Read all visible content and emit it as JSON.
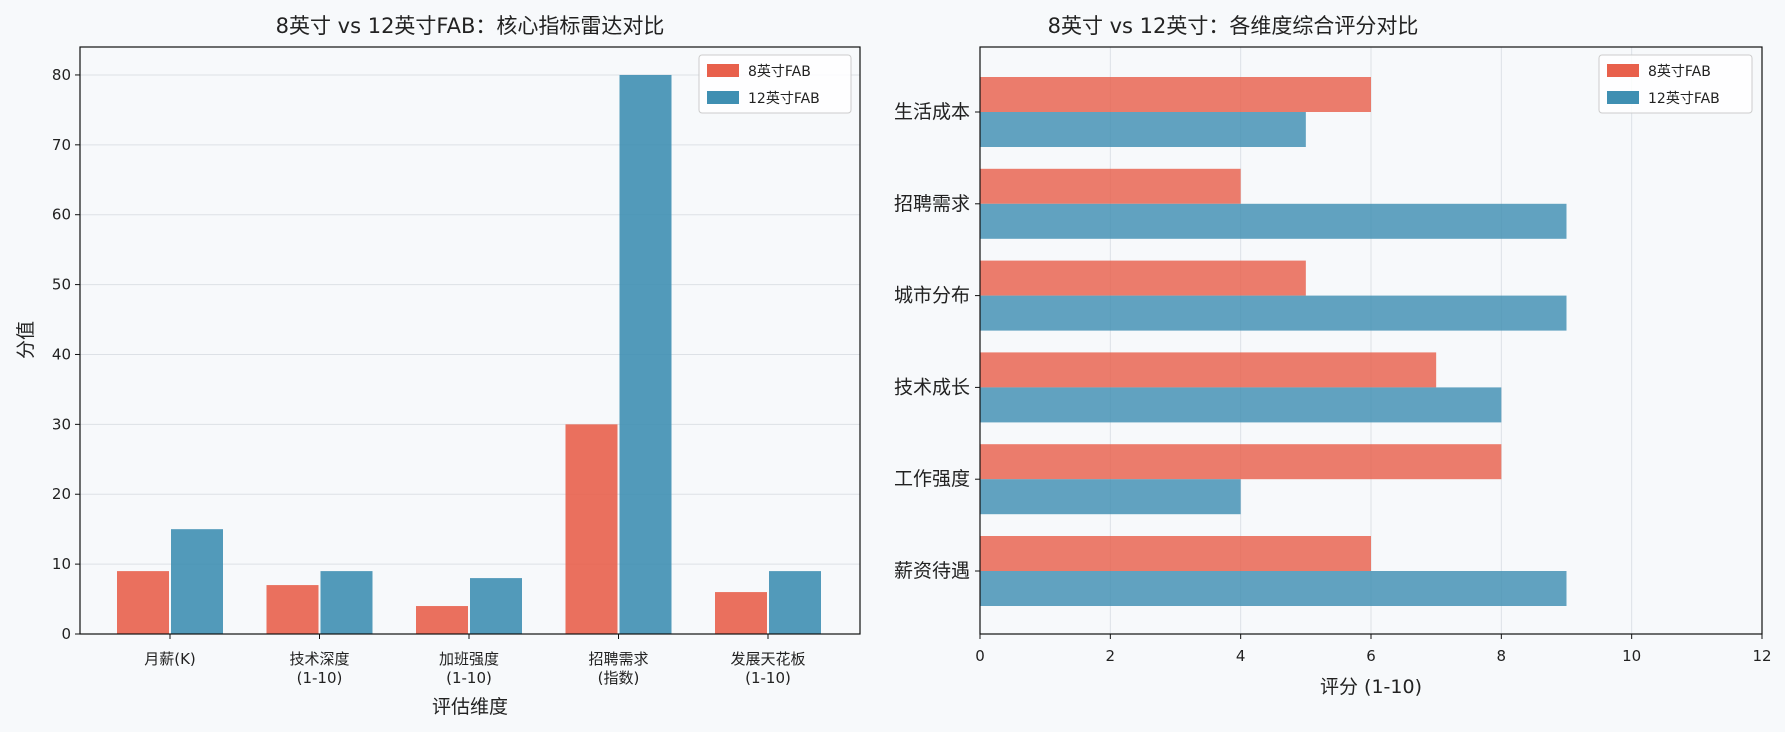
{
  "charts": [
    {
      "title": "8英寸 vs 12英寸FAB：核心指标雷达对比",
      "xlabel": "评估维度",
      "ylabel": "分值",
      "legend": [
        "8英寸FAB",
        "12英寸FAB"
      ],
      "x_ticks": [
        [
          "月薪(K)"
        ],
        [
          "技术深度",
          "(1-10)"
        ],
        [
          "加班强度",
          "(1-10)"
        ],
        [
          "招聘需求",
          "(指数)"
        ],
        [
          "发展天花板",
          "(1-10)"
        ]
      ],
      "y_ticks": [
        "0",
        "10",
        "20",
        "30",
        "40",
        "50",
        "60",
        "70",
        "80"
      ]
    },
    {
      "title": "8英寸 vs 12英寸：各维度综合评分对比",
      "xlabel": "评分 (1-10)",
      "legend": [
        "8英寸FAB",
        "12英寸FAB"
      ],
      "x_ticks": [
        "0",
        "2",
        "4",
        "6",
        "8",
        "10",
        "12"
      ],
      "y_ticks": [
        "薪资待遇",
        "工作强度",
        "技术成长",
        "城市分布",
        "招聘需求",
        "生活成本"
      ]
    }
  ],
  "chart_data": [
    {
      "type": "bar",
      "categories": [
        "月薪(K)",
        "技术深度(1-10)",
        "加班强度(1-10)",
        "招聘需求(指数)",
        "发展天花板(1-10)"
      ],
      "series": [
        {
          "name": "8英寸FAB",
          "values": [
            9,
            7,
            4,
            30,
            6
          ],
          "color": "#e8604c"
        },
        {
          "name": "12英寸FAB",
          "values": [
            15,
            9,
            8,
            80,
            9
          ],
          "color": "#3f8fb2"
        }
      ],
      "ylim": [
        0,
        84
      ],
      "grid": "y",
      "legend_position": "top-right"
    },
    {
      "type": "bar",
      "orientation": "horizontal",
      "categories": [
        "薪资待遇",
        "工作强度",
        "技术成长",
        "城市分布",
        "招聘需求",
        "生活成本"
      ],
      "series": [
        {
          "name": "8英寸FAB",
          "values": [
            6,
            8,
            7,
            5,
            4,
            6
          ],
          "color": "#e8604c"
        },
        {
          "name": "12英寸FAB",
          "values": [
            9,
            4,
            8,
            9,
            9,
            5
          ],
          "color": "#3f8fb2"
        }
      ],
      "xlim": [
        0,
        12
      ],
      "grid": "x",
      "legend_position": "top-right"
    }
  ]
}
